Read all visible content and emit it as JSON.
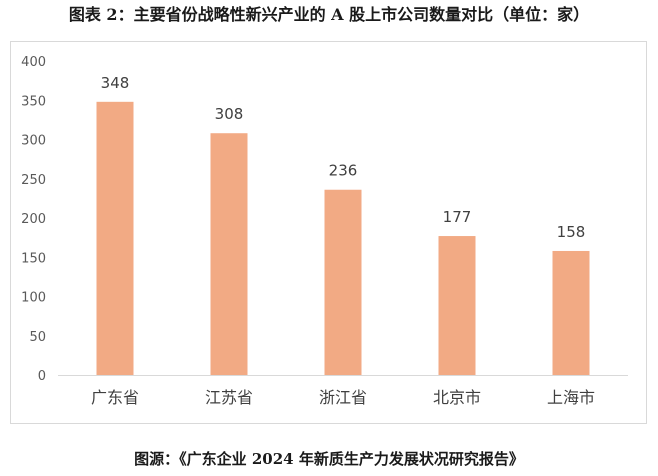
{
  "figure": {
    "title": "图表 2：主要省份战略性新兴产业的 A 股上市公司数量对比（单位：家）",
    "source": "图源：《广东企业 2024 年新质生产力发展状况研究报告》"
  },
  "colors": {
    "bar": "#f2aa84",
    "axis": "#d9d9d9"
  },
  "chart_data": {
    "type": "bar",
    "title": "图表 2：主要省份战略性新兴产业的 A 股上市公司数量对比（单位：家）",
    "xlabel": "",
    "ylabel": "",
    "categories": [
      "广东省",
      "江苏省",
      "浙江省",
      "北京市",
      "上海市"
    ],
    "values": [
      348,
      308,
      236,
      177,
      158
    ],
    "ylim": [
      0,
      400
    ],
    "yticks": [
      0,
      50,
      100,
      150,
      200,
      250,
      300,
      350,
      400
    ],
    "grid": false,
    "legend": "none",
    "data_labels": true
  }
}
